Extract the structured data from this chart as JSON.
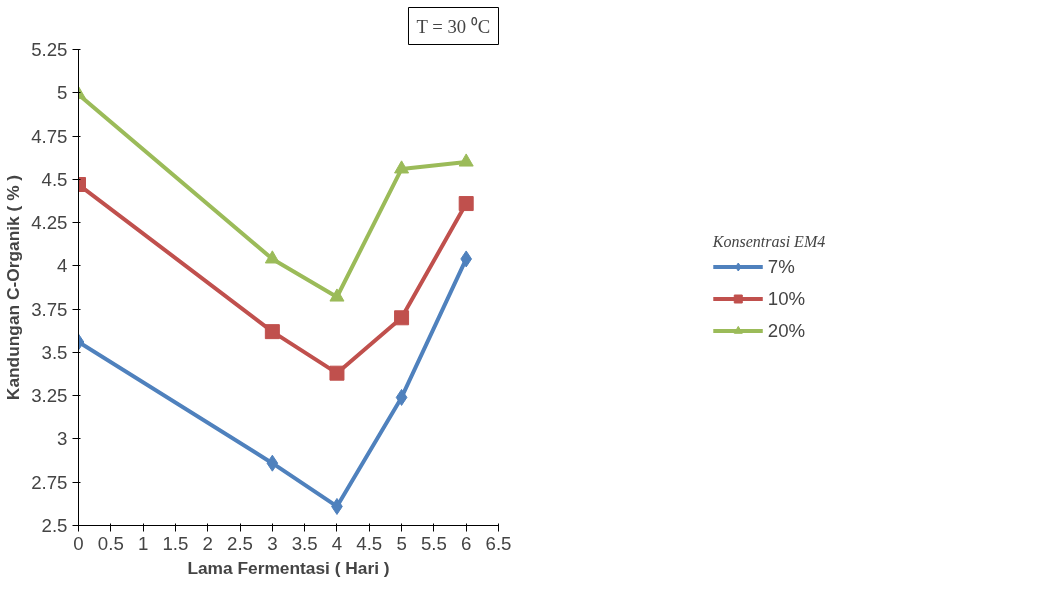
{
  "chart_data": {
    "type": "line",
    "xlabel": "Lama Fermentasi ( Hari )",
    "ylabel": "Kandungan C-Organik ( % )",
    "legend_title": "Konsentrasi EM4",
    "annotations": [
      "T = 30 ⁰C"
    ],
    "x": [
      0,
      3,
      4,
      5,
      6
    ],
    "xlim": [
      0,
      6.5
    ],
    "xticks": [
      0,
      0.5,
      1,
      1.5,
      2,
      2.5,
      3,
      3.5,
      4,
      4.5,
      5,
      5.5,
      6,
      6.5
    ],
    "ylim": [
      2.5,
      5.25
    ],
    "yticks": [
      2.5,
      2.75,
      3,
      3.25,
      3.5,
      3.75,
      4,
      4.25,
      4.5,
      4.75,
      5,
      5.25
    ],
    "grid": false,
    "legend": "right",
    "line_style": "solid",
    "series": [
      {
        "name": "7%",
        "color": "#4f81bd",
        "marker": "diamond",
        "values": [
          3.56,
          2.86,
          2.61,
          3.24,
          4.04
        ]
      },
      {
        "name": "10%",
        "color": "#c0504d",
        "marker": "square",
        "values": [
          4.47,
          3.62,
          3.38,
          3.7,
          4.36
        ]
      },
      {
        "name": "20%",
        "color": "#9bbb59",
        "marker": "triangle",
        "values": [
          4.99,
          4.04,
          3.82,
          4.56,
          4.6
        ]
      }
    ]
  }
}
